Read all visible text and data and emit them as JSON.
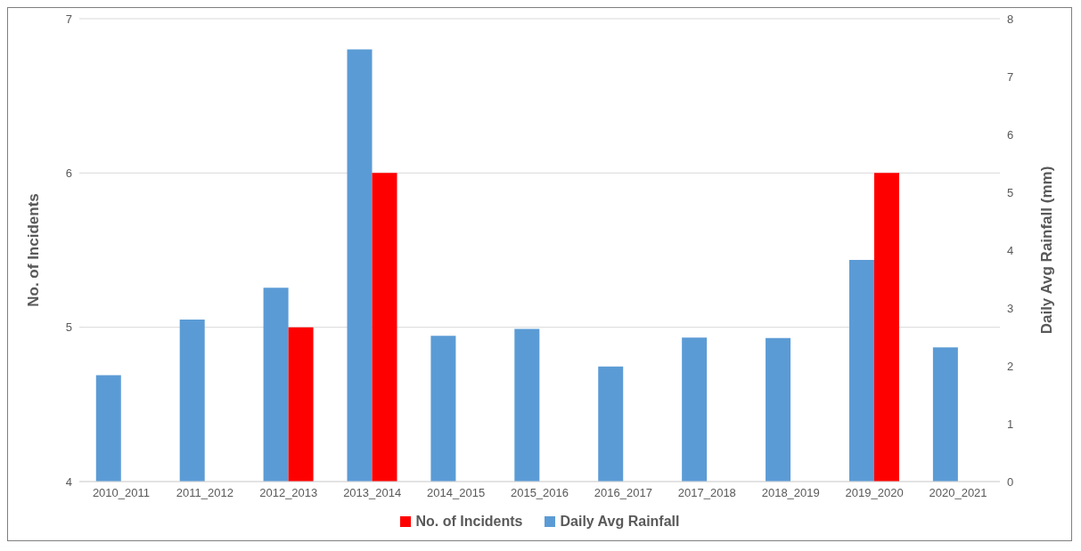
{
  "chart_data": {
    "type": "bar",
    "categories": [
      "2010_2011",
      "2011_2012",
      "2012_2013",
      "2013_2014",
      "2014_2015",
      "2015_2016",
      "2016_2017",
      "2017_2018",
      "2018_2019",
      "2019_2020",
      "2020_2021"
    ],
    "series": [
      {
        "name": "No. of Incidents",
        "color": "#ff0000",
        "values": [
          null,
          null,
          5,
          6,
          null,
          null,
          null,
          null,
          null,
          6,
          null
        ]
      },
      {
        "name": "Daily Avg Rainfall",
        "color": "#5b9bd5",
        "axis": "y2",
        "values": [
          1.84,
          2.8,
          3.35,
          7.47,
          2.52,
          2.64,
          1.99,
          2.49,
          2.48,
          3.83,
          2.32
        ]
      }
    ],
    "ylabel": "No. of Incidents",
    "y2label": "Daily Avg Rainfall (mm)",
    "ylim": [
      4,
      7
    ],
    "yticks": [
      4,
      5,
      6,
      7
    ],
    "y2lim": [
      0,
      8
    ],
    "y2ticks": [
      0,
      1,
      2,
      3,
      4,
      5,
      6,
      7,
      8
    ],
    "grid": "y",
    "legend": "bottom"
  }
}
